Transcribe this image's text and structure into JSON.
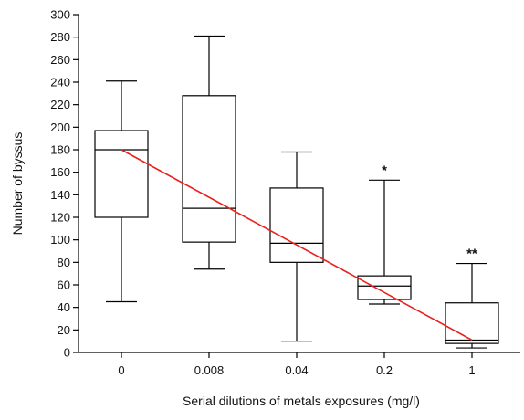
{
  "chart_data": {
    "type": "box",
    "title": "",
    "xlabel": "Serial dilutions of metals exposures (mg/l)",
    "ylabel": "Number of byssus",
    "ylim": [
      0,
      300
    ],
    "yticks": [
      0,
      20,
      40,
      60,
      80,
      100,
      120,
      140,
      160,
      180,
      200,
      220,
      240,
      260,
      280,
      300
    ],
    "categories": [
      "0",
      "0.008",
      "0.04",
      "0.2",
      "1"
    ],
    "boxes": [
      {
        "category": "0",
        "min": 45,
        "q1": 120,
        "median": 180,
        "q3": 197,
        "max": 241,
        "significance": ""
      },
      {
        "category": "0.008",
        "min": 74,
        "q1": 98,
        "median": 128,
        "q3": 228,
        "max": 281,
        "significance": ""
      },
      {
        "category": "0.04",
        "min": 10,
        "q1": 80,
        "median": 97,
        "q3": 146,
        "max": 178,
        "significance": ""
      },
      {
        "category": "0.2",
        "min": 43,
        "q1": 47,
        "median": 59,
        "q3": 68,
        "max": 153,
        "significance": "*"
      },
      {
        "category": "1",
        "min": 4,
        "q1": 8,
        "median": 11,
        "q3": 44,
        "max": 79,
        "significance": "**"
      }
    ],
    "trend_line": {
      "from": {
        "category": "0",
        "y": 180
      },
      "to": {
        "category": "1",
        "y": 11
      }
    },
    "trend_color": "#e8231f",
    "grid": false,
    "legend": "none"
  }
}
